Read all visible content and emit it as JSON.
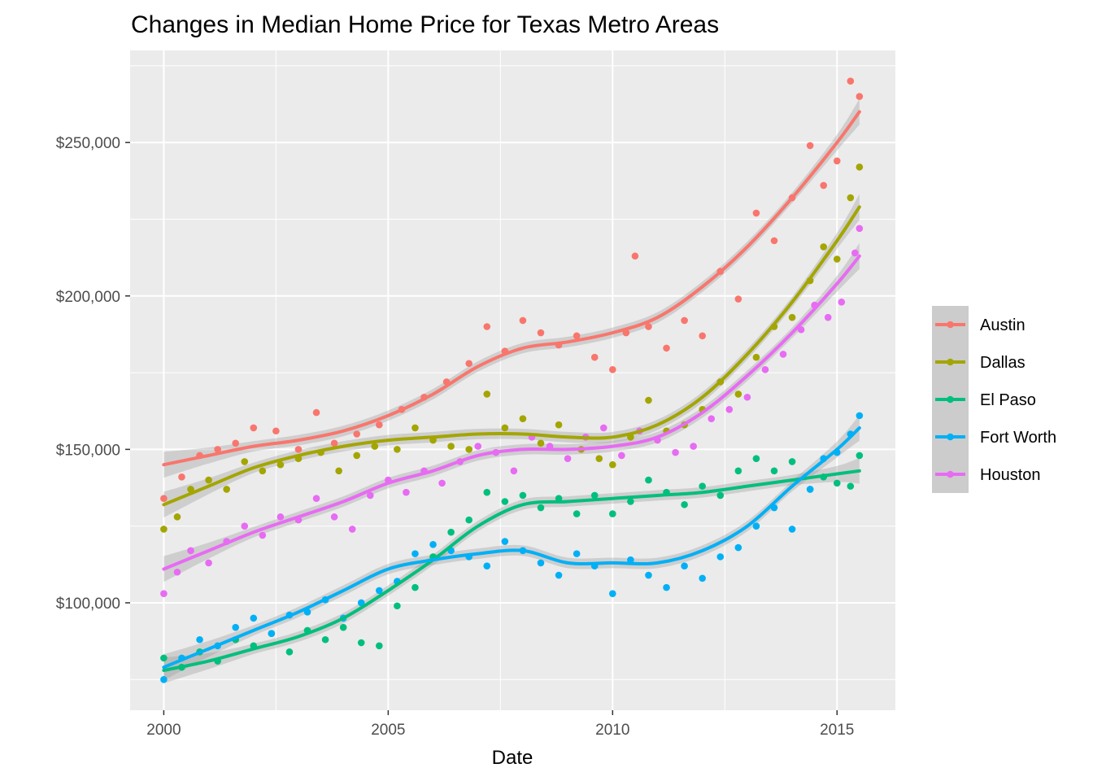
{
  "chart_data": {
    "type": "scatter",
    "title": "Changes in Median Home Price for Texas Metro Areas",
    "xlabel": "Date",
    "ylabel": "",
    "x_ticks": [
      "2000",
      "2005",
      "2010",
      "2015"
    ],
    "y_ticks": [
      "$100,000",
      "$150,000",
      "$200,000",
      "$250,000"
    ],
    "xlim": [
      1999.25,
      2016.3
    ],
    "ylim": [
      65000,
      280000
    ],
    "grid": true,
    "smoothed_trend": true,
    "legend_position": "right",
    "series": [
      {
        "name": "Austin",
        "color": "#F8766D",
        "trend": [
          [
            2000,
            145000
          ],
          [
            2001,
            148000
          ],
          [
            2002,
            151000
          ],
          [
            2003,
            153000
          ],
          [
            2004,
            156000
          ],
          [
            2005,
            161000
          ],
          [
            2006,
            168000
          ],
          [
            2007,
            177000
          ],
          [
            2008,
            183000
          ],
          [
            2009,
            185000
          ],
          [
            2010,
            188000
          ],
          [
            2011,
            193000
          ],
          [
            2012,
            203000
          ],
          [
            2013,
            216000
          ],
          [
            2014,
            232000
          ],
          [
            2015,
            250000
          ],
          [
            2015.5,
            260000
          ]
        ],
        "points": [
          [
            2000,
            134000
          ],
          [
            2000.4,
            141000
          ],
          [
            2000.8,
            148000
          ],
          [
            2001.2,
            150000
          ],
          [
            2001.6,
            152000
          ],
          [
            2002,
            157000
          ],
          [
            2002.5,
            156000
          ],
          [
            2003,
            150000
          ],
          [
            2003.4,
            162000
          ],
          [
            2003.8,
            152000
          ],
          [
            2004.3,
            155000
          ],
          [
            2004.8,
            158000
          ],
          [
            2005.3,
            163000
          ],
          [
            2005.8,
            167000
          ],
          [
            2006.3,
            172000
          ],
          [
            2006.8,
            178000
          ],
          [
            2007.2,
            190000
          ],
          [
            2007.6,
            182000
          ],
          [
            2008,
            192000
          ],
          [
            2008.4,
            188000
          ],
          [
            2008.8,
            184000
          ],
          [
            2009.2,
            187000
          ],
          [
            2009.6,
            180000
          ],
          [
            2010,
            176000
          ],
          [
            2010.3,
            188000
          ],
          [
            2010.5,
            213000
          ],
          [
            2010.8,
            190000
          ],
          [
            2011.2,
            183000
          ],
          [
            2011.6,
            192000
          ],
          [
            2012,
            187000
          ],
          [
            2012.4,
            208000
          ],
          [
            2012.8,
            199000
          ],
          [
            2013.2,
            227000
          ],
          [
            2013.6,
            218000
          ],
          [
            2014,
            232000
          ],
          [
            2014.4,
            249000
          ],
          [
            2014.7,
            236000
          ],
          [
            2015,
            244000
          ],
          [
            2015.3,
            270000
          ],
          [
            2015.5,
            265000
          ]
        ]
      },
      {
        "name": "Dallas",
        "color": "#A3A500",
        "trend": [
          [
            2000,
            132000
          ],
          [
            2001,
            138000
          ],
          [
            2002,
            144000
          ],
          [
            2003,
            148000
          ],
          [
            2004,
            151000
          ],
          [
            2005,
            153000
          ],
          [
            2006,
            154000
          ],
          [
            2007,
            155000
          ],
          [
            2008,
            155000
          ],
          [
            2009,
            154000
          ],
          [
            2010,
            154000
          ],
          [
            2011,
            158000
          ],
          [
            2012,
            167000
          ],
          [
            2013,
            181000
          ],
          [
            2014,
            198000
          ],
          [
            2015,
            218000
          ],
          [
            2015.5,
            229000
          ]
        ],
        "points": [
          [
            2000,
            124000
          ],
          [
            2000.3,
            128000
          ],
          [
            2000.6,
            137000
          ],
          [
            2001,
            140000
          ],
          [
            2001.4,
            137000
          ],
          [
            2001.8,
            146000
          ],
          [
            2002.2,
            143000
          ],
          [
            2002.6,
            145000
          ],
          [
            2003,
            147000
          ],
          [
            2003.5,
            149000
          ],
          [
            2003.9,
            143000
          ],
          [
            2004.3,
            148000
          ],
          [
            2004.7,
            151000
          ],
          [
            2005.2,
            150000
          ],
          [
            2005.6,
            157000
          ],
          [
            2006,
            153000
          ],
          [
            2006.4,
            151000
          ],
          [
            2006.8,
            150000
          ],
          [
            2007.2,
            168000
          ],
          [
            2007.6,
            157000
          ],
          [
            2008,
            160000
          ],
          [
            2008.4,
            152000
          ],
          [
            2008.8,
            158000
          ],
          [
            2009.3,
            150000
          ],
          [
            2009.7,
            147000
          ],
          [
            2010,
            145000
          ],
          [
            2010.4,
            154000
          ],
          [
            2010.8,
            166000
          ],
          [
            2011.2,
            156000
          ],
          [
            2011.6,
            158000
          ],
          [
            2012,
            163000
          ],
          [
            2012.4,
            172000
          ],
          [
            2012.8,
            168000
          ],
          [
            2013.2,
            180000
          ],
          [
            2013.6,
            190000
          ],
          [
            2014,
            193000
          ],
          [
            2014.4,
            205000
          ],
          [
            2014.7,
            216000
          ],
          [
            2015,
            212000
          ],
          [
            2015.3,
            232000
          ],
          [
            2015.5,
            242000
          ]
        ]
      },
      {
        "name": "El Paso",
        "color": "#00BF7D",
        "trend": [
          [
            2000,
            78000
          ],
          [
            2001,
            81000
          ],
          [
            2002,
            85000
          ],
          [
            2003,
            89000
          ],
          [
            2004,
            95000
          ],
          [
            2005,
            104000
          ],
          [
            2006,
            114000
          ],
          [
            2007,
            125000
          ],
          [
            2008,
            132000
          ],
          [
            2009,
            133000
          ],
          [
            2010,
            134000
          ],
          [
            2011,
            135000
          ],
          [
            2012,
            136000
          ],
          [
            2013,
            138000
          ],
          [
            2014,
            140000
          ],
          [
            2015,
            142000
          ],
          [
            2015.5,
            143000
          ]
        ],
        "points": [
          [
            2000,
            82000
          ],
          [
            2000.4,
            79000
          ],
          [
            2000.8,
            84000
          ],
          [
            2001.2,
            81000
          ],
          [
            2001.6,
            88000
          ],
          [
            2002,
            86000
          ],
          [
            2002.4,
            90000
          ],
          [
            2002.8,
            84000
          ],
          [
            2003.2,
            91000
          ],
          [
            2003.6,
            88000
          ],
          [
            2004,
            92000
          ],
          [
            2004.4,
            87000
          ],
          [
            2004.8,
            86000
          ],
          [
            2005.2,
            99000
          ],
          [
            2005.6,
            105000
          ],
          [
            2006,
            115000
          ],
          [
            2006.4,
            123000
          ],
          [
            2006.8,
            127000
          ],
          [
            2007.2,
            136000
          ],
          [
            2007.6,
            133000
          ],
          [
            2008,
            135000
          ],
          [
            2008.4,
            131000
          ],
          [
            2008.8,
            134000
          ],
          [
            2009.2,
            129000
          ],
          [
            2009.6,
            135000
          ],
          [
            2010,
            129000
          ],
          [
            2010.4,
            133000
          ],
          [
            2010.8,
            140000
          ],
          [
            2011.2,
            136000
          ],
          [
            2011.6,
            132000
          ],
          [
            2012,
            138000
          ],
          [
            2012.4,
            135000
          ],
          [
            2012.8,
            143000
          ],
          [
            2013.2,
            147000
          ],
          [
            2013.6,
            143000
          ],
          [
            2014,
            146000
          ],
          [
            2014.4,
            137000
          ],
          [
            2014.7,
            141000
          ],
          [
            2015,
            139000
          ],
          [
            2015.3,
            138000
          ],
          [
            2015.5,
            148000
          ]
        ]
      },
      {
        "name": "Fort Worth",
        "color": "#00B0F6",
        "trend": [
          [
            2000,
            79000
          ],
          [
            2001,
            85000
          ],
          [
            2002,
            91000
          ],
          [
            2003,
            97000
          ],
          [
            2004,
            104000
          ],
          [
            2005,
            111000
          ],
          [
            2006,
            114000
          ],
          [
            2007,
            116000
          ],
          [
            2008,
            117000
          ],
          [
            2009,
            113000
          ],
          [
            2010,
            113000
          ],
          [
            2011,
            113000
          ],
          [
            2012,
            117000
          ],
          [
            2013,
            125000
          ],
          [
            2014,
            138000
          ],
          [
            2015,
            150000
          ],
          [
            2015.5,
            157000
          ]
        ],
        "points": [
          [
            2000,
            75000
          ],
          [
            2000.4,
            82000
          ],
          [
            2000.8,
            88000
          ],
          [
            2001.2,
            86000
          ],
          [
            2001.6,
            92000
          ],
          [
            2002,
            95000
          ],
          [
            2002.4,
            90000
          ],
          [
            2002.8,
            96000
          ],
          [
            2003.2,
            97000
          ],
          [
            2003.6,
            101000
          ],
          [
            2004,
            95000
          ],
          [
            2004.4,
            100000
          ],
          [
            2004.8,
            104000
          ],
          [
            2005.2,
            107000
          ],
          [
            2005.6,
            116000
          ],
          [
            2006,
            119000
          ],
          [
            2006.4,
            117000
          ],
          [
            2006.8,
            115000
          ],
          [
            2007.2,
            112000
          ],
          [
            2007.6,
            120000
          ],
          [
            2008,
            117000
          ],
          [
            2008.4,
            113000
          ],
          [
            2008.8,
            109000
          ],
          [
            2009.2,
            116000
          ],
          [
            2009.6,
            112000
          ],
          [
            2010,
            103000
          ],
          [
            2010.4,
            114000
          ],
          [
            2010.8,
            109000
          ],
          [
            2011.2,
            105000
          ],
          [
            2011.6,
            112000
          ],
          [
            2012,
            108000
          ],
          [
            2012.4,
            115000
          ],
          [
            2012.8,
            118000
          ],
          [
            2013.2,
            125000
          ],
          [
            2013.6,
            131000
          ],
          [
            2014,
            124000
          ],
          [
            2014.4,
            137000
          ],
          [
            2014.7,
            147000
          ],
          [
            2015,
            149000
          ],
          [
            2015.3,
            155000
          ],
          [
            2015.5,
            161000
          ]
        ]
      },
      {
        "name": "Houston",
        "color": "#E76BF3",
        "trend": [
          [
            2000,
            111000
          ],
          [
            2001,
            117000
          ],
          [
            2002,
            123000
          ],
          [
            2003,
            128000
          ],
          [
            2004,
            133000
          ],
          [
            2005,
            139000
          ],
          [
            2006,
            143000
          ],
          [
            2007,
            148000
          ],
          [
            2008,
            150000
          ],
          [
            2009,
            150000
          ],
          [
            2010,
            151000
          ],
          [
            2011,
            154000
          ],
          [
            2012,
            162000
          ],
          [
            2013,
            174000
          ],
          [
            2014,
            188000
          ],
          [
            2015,
            204000
          ],
          [
            2015.5,
            213000
          ]
        ],
        "points": [
          [
            2000,
            103000
          ],
          [
            2000.3,
            110000
          ],
          [
            2000.6,
            117000
          ],
          [
            2001,
            113000
          ],
          [
            2001.4,
            120000
          ],
          [
            2001.8,
            125000
          ],
          [
            2002.2,
            122000
          ],
          [
            2002.6,
            128000
          ],
          [
            2003,
            127000
          ],
          [
            2003.4,
            134000
          ],
          [
            2003.8,
            128000
          ],
          [
            2004.2,
            124000
          ],
          [
            2004.6,
            135000
          ],
          [
            2005,
            140000
          ],
          [
            2005.4,
            136000
          ],
          [
            2005.8,
            143000
          ],
          [
            2006.2,
            139000
          ],
          [
            2006.6,
            146000
          ],
          [
            2007,
            151000
          ],
          [
            2007.4,
            149000
          ],
          [
            2007.8,
            143000
          ],
          [
            2008.2,
            154000
          ],
          [
            2008.6,
            151000
          ],
          [
            2009,
            147000
          ],
          [
            2009.4,
            154000
          ],
          [
            2009.8,
            157000
          ],
          [
            2010.2,
            148000
          ],
          [
            2010.6,
            156000
          ],
          [
            2011,
            153000
          ],
          [
            2011.4,
            149000
          ],
          [
            2011.8,
            151000
          ],
          [
            2012.2,
            160000
          ],
          [
            2012.6,
            163000
          ],
          [
            2013,
            167000
          ],
          [
            2013.4,
            176000
          ],
          [
            2013.8,
            181000
          ],
          [
            2014.2,
            189000
          ],
          [
            2014.5,
            197000
          ],
          [
            2014.8,
            193000
          ],
          [
            2015.1,
            198000
          ],
          [
            2015.4,
            214000
          ],
          [
            2015.5,
            222000
          ]
        ]
      }
    ]
  }
}
